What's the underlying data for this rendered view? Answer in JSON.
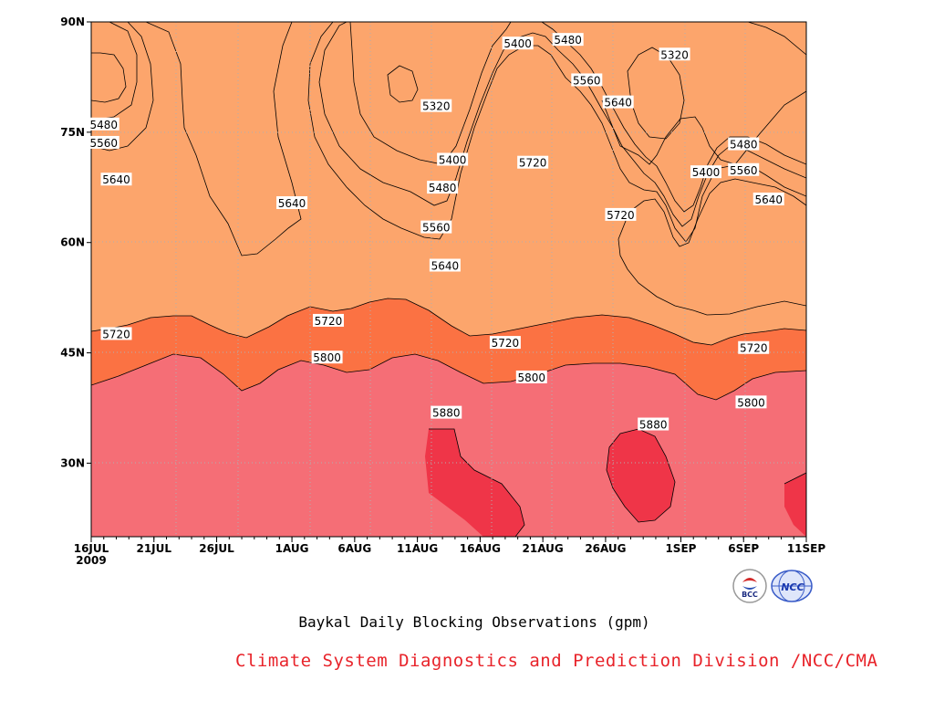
{
  "chart_data": {
    "type": "heatmap",
    "title": "Baykal Daily Blocking Observations (gpm)",
    "xlabel": "",
    "ylabel": "",
    "x_ticks": [
      "16JUL",
      "21JUL",
      "26JUL",
      "1AUG",
      "6AUG",
      "11AUG",
      "16AUG",
      "21AUG",
      "26AUG",
      "1SEP",
      "6SEP",
      "11SEP"
    ],
    "x_tick_day_index": [
      0,
      5,
      10,
      16,
      21,
      26,
      31,
      36,
      41,
      47,
      52,
      57
    ],
    "x_year_label": "2009",
    "y_ticks": [
      "30N",
      "45N",
      "60N",
      "75N",
      "90N"
    ],
    "y_tick_values": [
      30,
      45,
      60,
      75,
      90
    ],
    "ylim": [
      20,
      90
    ],
    "xlim": [
      "16JUL",
      "11SEP"
    ],
    "contour_levels": [
      5320,
      5400,
      5480,
      5560,
      5640,
      5720,
      5800,
      5880
    ],
    "fill_colors": [
      "#3d42e6",
      "#5a8fdf",
      "#66c3fa",
      "#fbfb84",
      "#fde2a5",
      "#fca56c",
      "#fb7243",
      "#f56e76",
      "#ef3548"
    ],
    "contour_labels": [
      {
        "text": "5400",
        "day": 34,
        "lat": 87.0
      },
      {
        "text": "5480",
        "day": 38,
        "lat": 87.5
      },
      {
        "text": "5320",
        "day": 46.5,
        "lat": 85.5
      },
      {
        "text": "5560",
        "day": 39.5,
        "lat": 82.0
      },
      {
        "text": "5320",
        "day": 27.5,
        "lat": 78.5
      },
      {
        "text": "5640",
        "day": 42,
        "lat": 79.0
      },
      {
        "text": "5480",
        "day": 1,
        "lat": 76.0
      },
      {
        "text": "5560",
        "day": 1,
        "lat": 73.5
      },
      {
        "text": "5400",
        "day": 28.8,
        "lat": 71.2
      },
      {
        "text": "5720",
        "day": 35.2,
        "lat": 70.8
      },
      {
        "text": "5480",
        "day": 52,
        "lat": 73.3
      },
      {
        "text": "5400",
        "day": 49,
        "lat": 69.5
      },
      {
        "text": "5560",
        "day": 52,
        "lat": 69.8
      },
      {
        "text": "5640",
        "day": 2,
        "lat": 68.5
      },
      {
        "text": "5480",
        "day": 28,
        "lat": 67.4
      },
      {
        "text": "5640",
        "day": 16,
        "lat": 65.3
      },
      {
        "text": "5640",
        "day": 54,
        "lat": 65.8
      },
      {
        "text": "5720",
        "day": 42.2,
        "lat": 63.7
      },
      {
        "text": "5560",
        "day": 27.5,
        "lat": 62.0
      },
      {
        "text": "5640",
        "day": 28.2,
        "lat": 56.8
      },
      {
        "text": "5720",
        "day": 18.9,
        "lat": 49.3
      },
      {
        "text": "5720",
        "day": 2,
        "lat": 47.5
      },
      {
        "text": "5720",
        "day": 33,
        "lat": 46.3
      },
      {
        "text": "5720",
        "day": 52.8,
        "lat": 45.6
      },
      {
        "text": "5800",
        "day": 18.8,
        "lat": 44.3
      },
      {
        "text": "5800",
        "day": 35.1,
        "lat": 41.6
      },
      {
        "text": "5800",
        "day": 52.6,
        "lat": 38.2
      },
      {
        "text": "5880",
        "day": 28.3,
        "lat": 36.8
      },
      {
        "text": "5880",
        "day": 44.8,
        "lat": 35.2
      }
    ]
  },
  "credit": "Climate System Diagnostics and Prediction Division /NCC/CMA",
  "logos": {
    "bcc": {
      "text": "BCC",
      "icon": "bcc-logo"
    },
    "ncc": {
      "text": "NCC",
      "icon": "ncc-logo"
    }
  }
}
